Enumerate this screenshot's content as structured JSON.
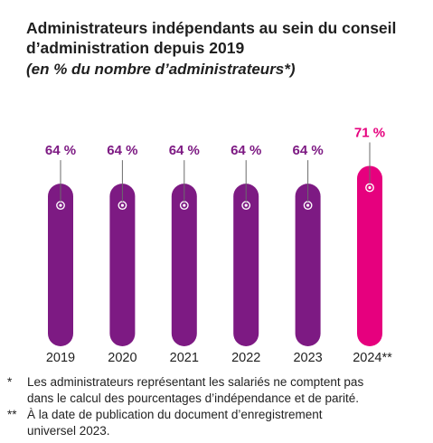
{
  "title": {
    "line1": "Administrateurs indépendants au sein du conseil",
    "line2": "d’administration depuis 2019"
  },
  "subtitle": "(en % du nombre d’administrateurs*)",
  "chart_data": {
    "type": "bar",
    "categories": [
      "2019",
      "2020",
      "2021",
      "2022",
      "2023",
      "2024**"
    ],
    "values": [
      64,
      64,
      64,
      64,
      64,
      71
    ],
    "value_labels": [
      "64 %",
      "64 %",
      "64 %",
      "64 %",
      "64 %",
      "71 %"
    ],
    "unit": "%",
    "grid": false,
    "legend": "none"
  },
  "colors": {
    "bar_default": "#7d1a83",
    "bar_highlight": "#e6007e",
    "label_default": "#7d1a83",
    "label_highlight": "#e6007e"
  },
  "footnotes": [
    {
      "mark": "*",
      "line1": "Les administrateurs représentant les salariés ne comptent pas",
      "line2": "dans le calcul des pourcentages d’indépendance et de parité."
    },
    {
      "mark": "**",
      "line1": "À la date de publication du document d’enregistrement",
      "line2": "universel 2023."
    }
  ]
}
